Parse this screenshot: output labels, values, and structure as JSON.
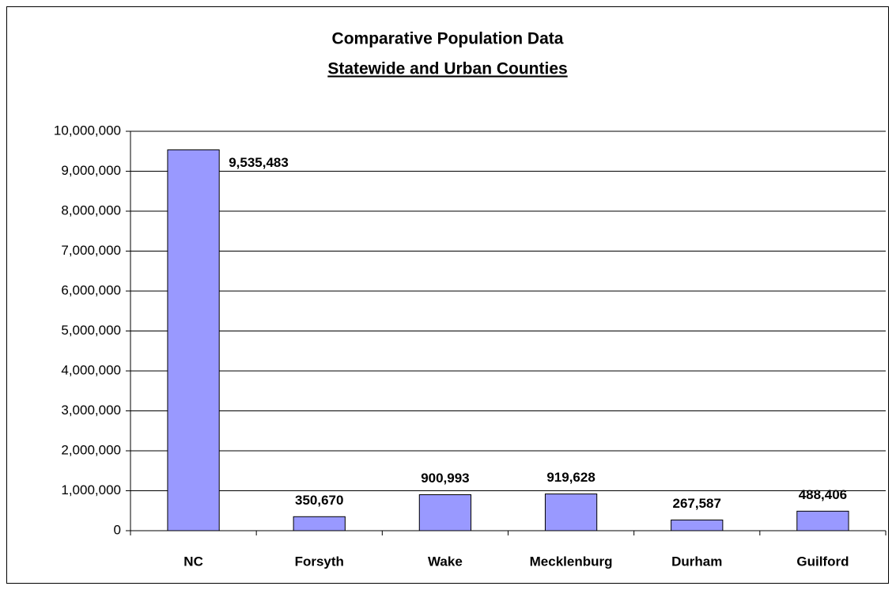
{
  "chart_data": {
    "type": "bar",
    "title": "Comparative Population Data",
    "subtitle": "Statewide and Urban Counties",
    "categories": [
      "NC",
      "Forsyth",
      "Wake",
      "Mecklenburg",
      "Durham",
      "Guilford"
    ],
    "values": [
      9535483,
      350670,
      900993,
      919628,
      267587,
      488406
    ],
    "value_labels": [
      "9,535,483",
      "350,670",
      "900,993",
      "919,628",
      "267,587",
      "488,406"
    ],
    "color": "#9999ff",
    "ylim": [
      0,
      10000000
    ],
    "yticks": [
      0,
      {
        "value": 1000000,
        "label": "1,000,000"
      },
      {
        "value": 2000000,
        "label": "2,000,000"
      },
      {
        "value": 3000000,
        "label": "3,000,000"
      },
      {
        "value": 4000000,
        "label": "4,000,000"
      },
      {
        "value": 5000000,
        "label": "5,000,000"
      },
      {
        "value": 6000000,
        "label": "6,000,000"
      },
      {
        "value": 7000000,
        "label": "7,000,000"
      },
      {
        "value": 8000000,
        "label": "8,000,000"
      },
      {
        "value": 9000000,
        "label": "9,000,000"
      },
      {
        "value": 10000000,
        "label": "10,000,000"
      }
    ],
    "grid": true
  }
}
